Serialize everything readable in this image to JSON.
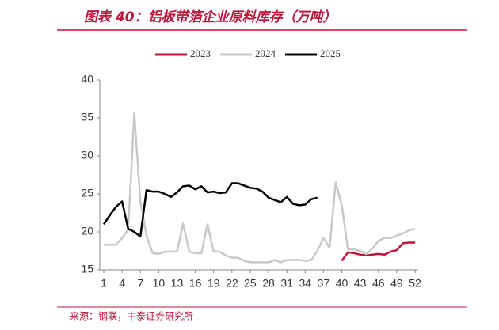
{
  "chart_data": {
    "type": "line",
    "title": "图表 40：铝板带箔企业原料库存（万吨）",
    "source": "来源：钢联，中泰证券研究所",
    "x": [
      1,
      2,
      3,
      4,
      5,
      6,
      7,
      8,
      9,
      10,
      11,
      12,
      13,
      14,
      15,
      16,
      17,
      18,
      19,
      20,
      21,
      22,
      23,
      24,
      25,
      26,
      27,
      28,
      29,
      30,
      31,
      32,
      33,
      34,
      35,
      36,
      37,
      38,
      39,
      40,
      41,
      42,
      43,
      44,
      45,
      46,
      47,
      48,
      49,
      50,
      51,
      52
    ],
    "xlim": [
      1,
      52
    ],
    "xticks": [
      1,
      4,
      7,
      10,
      13,
      16,
      19,
      22,
      25,
      28,
      31,
      34,
      37,
      40,
      43,
      46,
      49,
      52
    ],
    "ylim": [
      15,
      40
    ],
    "yticks": [
      15,
      20,
      25,
      30,
      35,
      40
    ],
    "grid": false,
    "legend": "top",
    "series": [
      {
        "name": "2023",
        "color": "#c0143c",
        "values": [
          null,
          null,
          null,
          null,
          null,
          null,
          null,
          null,
          null,
          null,
          null,
          null,
          null,
          null,
          null,
          null,
          null,
          null,
          null,
          null,
          null,
          null,
          null,
          null,
          null,
          null,
          null,
          null,
          null,
          null,
          null,
          null,
          null,
          null,
          null,
          null,
          null,
          null,
          null,
          16.2,
          17.3,
          17.2,
          17.0,
          16.9,
          17.0,
          17.1,
          17.0,
          17.4,
          17.6,
          18.5,
          18.6,
          18.6
        ]
      },
      {
        "name": "2024",
        "color": "#c8c8c8",
        "values": [
          18.3,
          18.3,
          18.3,
          19.2,
          20.3,
          35.6,
          24.0,
          19.5,
          17.2,
          17.1,
          17.4,
          17.4,
          17.4,
          21.1,
          17.4,
          17.2,
          17.2,
          21.0,
          17.4,
          17.4,
          16.9,
          16.6,
          16.6,
          16.2,
          16.0,
          16.0,
          16.0,
          16.0,
          16.3,
          16.0,
          16.3,
          16.3,
          16.3,
          16.2,
          16.3,
          17.5,
          19.2,
          17.9,
          26.5,
          23.5,
          17.7,
          17.7,
          17.5,
          17.1,
          17.8,
          18.8,
          19.2,
          19.2,
          19.5,
          19.8,
          20.2,
          20.4
        ]
      },
      {
        "name": "2025",
        "color": "#000000",
        "values": [
          21.0,
          22.2,
          23.3,
          24.0,
          20.4,
          20.0,
          19.4,
          25.5,
          25.3,
          25.3,
          25.0,
          24.6,
          25.2,
          26.0,
          26.1,
          25.6,
          26.0,
          25.2,
          25.3,
          25.1,
          25.2,
          26.4,
          26.4,
          26.1,
          25.8,
          25.7,
          25.3,
          24.5,
          24.2,
          23.9,
          24.6,
          23.7,
          23.5,
          23.6,
          24.3,
          24.5,
          null,
          null,
          null,
          null,
          null,
          null,
          null,
          null,
          null,
          null,
          null,
          null,
          null,
          null,
          null,
          null
        ]
      }
    ]
  }
}
